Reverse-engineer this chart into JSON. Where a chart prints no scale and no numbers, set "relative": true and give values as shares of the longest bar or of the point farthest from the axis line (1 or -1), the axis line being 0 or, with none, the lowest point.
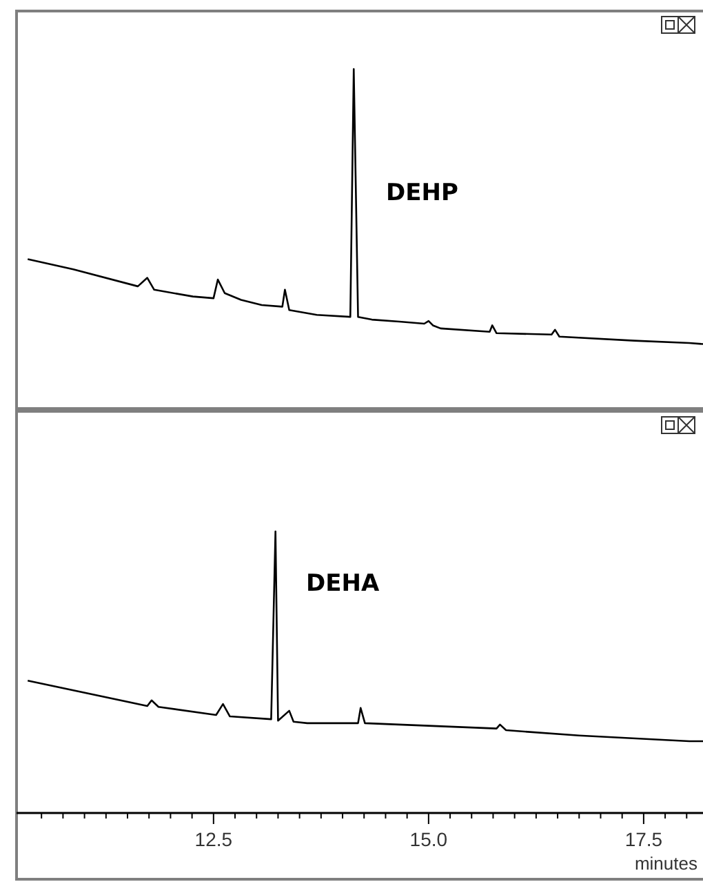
{
  "chart_data": [
    {
      "type": "line",
      "relative": true,
      "xlim": [
        10.21,
        18.19
      ],
      "tick_labels": false,
      "annotations": [
        "DEHP"
      ],
      "series": [
        {
          "color": "#000000",
          "x": [
            10.34,
            10.87,
            11.62,
            11.73,
            11.81,
            12.26,
            12.5,
            12.55,
            12.63,
            12.82,
            13.06,
            13.3,
            13.33,
            13.38,
            13.7,
            14.09,
            14.13,
            14.18,
            14.34,
            14.66,
            14.95,
            15.0,
            15.05,
            15.14,
            15.71,
            15.74,
            15.79,
            16.43,
            16.47,
            16.52,
            17.39,
            18.03,
            18.19
          ],
          "values": [
            0.44,
            0.41,
            0.36,
            0.385,
            0.35,
            0.33,
            0.325,
            0.38,
            0.34,
            0.32,
            0.305,
            0.3,
            0.35,
            0.29,
            0.276,
            0.27,
            1,
            0.27,
            0.262,
            0.256,
            0.25,
            0.258,
            0.245,
            0.236,
            0.226,
            0.245,
            0.222,
            0.218,
            0.232,
            0.212,
            0.2,
            0.193,
            0.19
          ]
        }
      ]
    },
    {
      "type": "line",
      "relative": true,
      "xlim": [
        10.21,
        18.19
      ],
      "tick_labels": "x",
      "xlabel": "minutes",
      "annotations": [
        "DEHA"
      ],
      "xticks": [
        {
          "value": 10.5,
          "label": null
        },
        {
          "value": 10.75,
          "label": null
        },
        {
          "value": 11,
          "label": null
        },
        {
          "value": 11.25,
          "label": null
        },
        {
          "value": 11.5,
          "label": null
        },
        {
          "value": 11.75,
          "label": null
        },
        {
          "value": 12,
          "label": null
        },
        {
          "value": 12.25,
          "label": null
        },
        12.5,
        {
          "value": 12.75,
          "label": null
        },
        {
          "value": 13,
          "label": null
        },
        {
          "value": 13.25,
          "label": null
        },
        {
          "value": 13.5,
          "label": null
        },
        {
          "value": 13.75,
          "label": null
        },
        {
          "value": 14,
          "label": null
        },
        {
          "value": 14.25,
          "label": null
        },
        {
          "value": 14.5,
          "label": null
        },
        {
          "value": 14.75,
          "label": null
        },
        {
          "value": 15,
          "label": "15.0"
        },
        {
          "value": 15.25,
          "label": null
        },
        {
          "value": 15.5,
          "label": null
        },
        {
          "value": 15.75,
          "label": null
        },
        {
          "value": 16,
          "label": null
        },
        {
          "value": 16.25,
          "label": null
        },
        {
          "value": 16.5,
          "label": null
        },
        {
          "value": 16.75,
          "label": null
        },
        {
          "value": 17,
          "label": null
        },
        {
          "value": 17.25,
          "label": null
        },
        17.5,
        {
          "value": 17.75,
          "label": null
        },
        {
          "value": 18,
          "label": null
        }
      ],
      "series": [
        {
          "color": "#000000",
          "x": [
            10.34,
            11.73,
            11.78,
            11.86,
            12.53,
            12.61,
            12.69,
            13.17,
            13.22,
            13.25,
            13.38,
            13.43,
            13.59,
            14.18,
            14.21,
            14.26,
            15.79,
            15.83,
            15.9,
            16.75,
            18.03,
            18.19
          ],
          "values": [
            0.47,
            0.38,
            0.4,
            0.377,
            0.348,
            0.387,
            0.343,
            0.333,
            1,
            0.328,
            0.363,
            0.324,
            0.319,
            0.319,
            0.373,
            0.319,
            0.3,
            0.314,
            0.294,
            0.275,
            0.255,
            0.255
          ]
        }
      ]
    }
  ]
}
